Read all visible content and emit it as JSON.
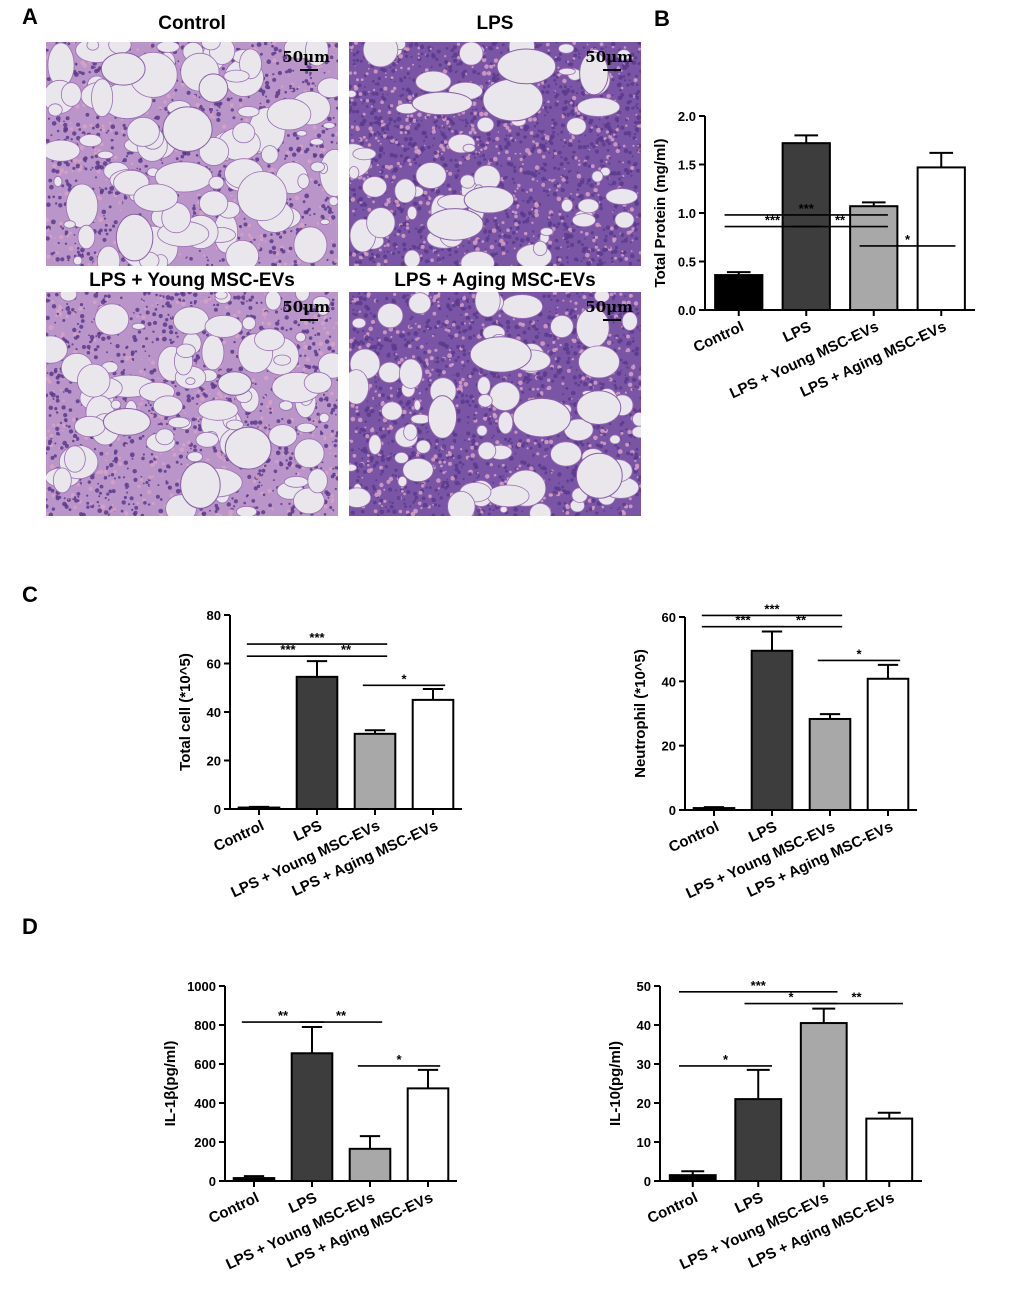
{
  "panels": {
    "A": "A",
    "B": "B",
    "C": "C",
    "D": "D"
  },
  "histology": {
    "scale_label": "50μm",
    "images": [
      {
        "title": "Control",
        "texture": "control"
      },
      {
        "title": "LPS",
        "texture": "lps"
      },
      {
        "title": "LPS + Young MSC-EVs",
        "texture": "young"
      },
      {
        "title": "LPS + Aging MSC-EVs",
        "texture": "aging"
      }
    ]
  },
  "colors": {
    "control": "#000000",
    "lps": "#3d3d3d",
    "young": "#a8a8a8",
    "aging": "#ffffff",
    "tissue_purple": "#5b3a8c",
    "tissue_pink": "#d8a2c4",
    "airspace": "#e9e6ec"
  },
  "chart_data": [
    {
      "type": "bar",
      "panel": "B",
      "categories": [
        "Control",
        "LPS",
        "LPS + Young MSC-EVs",
        "LPS + Aging MSC-EVs"
      ],
      "values": [
        0.36,
        1.72,
        1.07,
        1.47
      ],
      "errors": [
        0.03,
        0.08,
        0.04,
        0.15
      ],
      "ylabel": "Total Protein (mg/ml)",
      "ylim": [
        0,
        2.0
      ],
      "yticks": [
        "0.0",
        "0.5",
        "1.0",
        "1.5",
        "2.0"
      ],
      "significance": [
        {
          "from": 0,
          "to": 2,
          "label": "***",
          "level": 0.98
        },
        {
          "from": 0,
          "to": 1,
          "label": "***",
          "level": 0.86
        },
        {
          "from": 1,
          "to": 2,
          "label": "**",
          "level": 0.86
        },
        {
          "from": 2,
          "to": 3,
          "label": "*",
          "level": 0.66
        }
      ]
    },
    {
      "type": "bar",
      "panel": "C-left",
      "categories": [
        "Control",
        "LPS",
        "LPS + Young MSC-EVs",
        "LPS + Aging MSC-EVs"
      ],
      "values": [
        0.6,
        54.5,
        31,
        45
      ],
      "errors": [
        0.3,
        6.5,
        1.5,
        4.5
      ],
      "ylabel": "Total cell (*10^5)",
      "ylim": [
        0,
        80
      ],
      "yticks": [
        "0",
        "20",
        "40",
        "60",
        "80"
      ],
      "significance": [
        {
          "from": 0,
          "to": 2,
          "label": "***",
          "level": 68
        },
        {
          "from": 0,
          "to": 1,
          "label": "***",
          "level": 63
        },
        {
          "from": 1,
          "to": 2,
          "label": "**",
          "level": 63
        },
        {
          "from": 2,
          "to": 3,
          "label": "*",
          "level": 51
        }
      ]
    },
    {
      "type": "bar",
      "panel": "C-right",
      "categories": [
        "Control",
        "LPS",
        "LPS + Young MSC-EVs",
        "LPS + Aging MSC-EVs"
      ],
      "values": [
        0.6,
        49.5,
        28.3,
        40.8
      ],
      "errors": [
        0.3,
        6,
        1.5,
        4.3
      ],
      "ylabel": "Neutrophil (*10^5)",
      "ylim": [
        0,
        60
      ],
      "yticks": [
        "0",
        "20",
        "40",
        "60"
      ],
      "significance": [
        {
          "from": 0,
          "to": 2,
          "label": "***",
          "level": 60.5
        },
        {
          "from": 0,
          "to": 1,
          "label": "***",
          "level": 57
        },
        {
          "from": 1,
          "to": 2,
          "label": "**",
          "level": 57
        },
        {
          "from": 2,
          "to": 3,
          "label": "*",
          "level": 46.5
        }
      ]
    },
    {
      "type": "bar",
      "panel": "D-left",
      "categories": [
        "Control",
        "LPS",
        "LPS + Young MSC-EVs",
        "LPS + Aging MSC-EVs"
      ],
      "values": [
        15,
        655,
        165,
        475
      ],
      "errors": [
        10,
        135,
        65,
        95
      ],
      "ylabel": "IL-1β(pg/ml)",
      "ylim": [
        0,
        1000
      ],
      "yticks": [
        "0",
        "200",
        "400",
        "600",
        "800",
        "1000"
      ],
      "significance": [
        {
          "from": 0,
          "to": 1,
          "label": "**",
          "level": 815
        },
        {
          "from": 1,
          "to": 2,
          "label": "**",
          "level": 815
        },
        {
          "from": 2,
          "to": 3,
          "label": "*",
          "level": 590
        }
      ]
    },
    {
      "type": "bar",
      "panel": "D-right",
      "categories": [
        "Control",
        "LPS",
        "LPS + Young MSC-EVs",
        "LPS + Aging MSC-EVs"
      ],
      "values": [
        1.5,
        21,
        40.5,
        16
      ],
      "errors": [
        1,
        7.5,
        3.7,
        1.5
      ],
      "ylabel": "IL-10(pg/ml)",
      "ylim": [
        0,
        50
      ],
      "yticks": [
        "0",
        "10",
        "20",
        "30",
        "40",
        "50"
      ],
      "significance": [
        {
          "from": 0,
          "to": 2,
          "label": "***",
          "level": 48.5
        },
        {
          "from": 1,
          "to": 2,
          "label": "*",
          "level": 45.5
        },
        {
          "from": 2,
          "to": 3,
          "label": "**",
          "level": 45.5
        },
        {
          "from": 0,
          "to": 1,
          "label": "*",
          "level": 29.5
        }
      ]
    }
  ]
}
